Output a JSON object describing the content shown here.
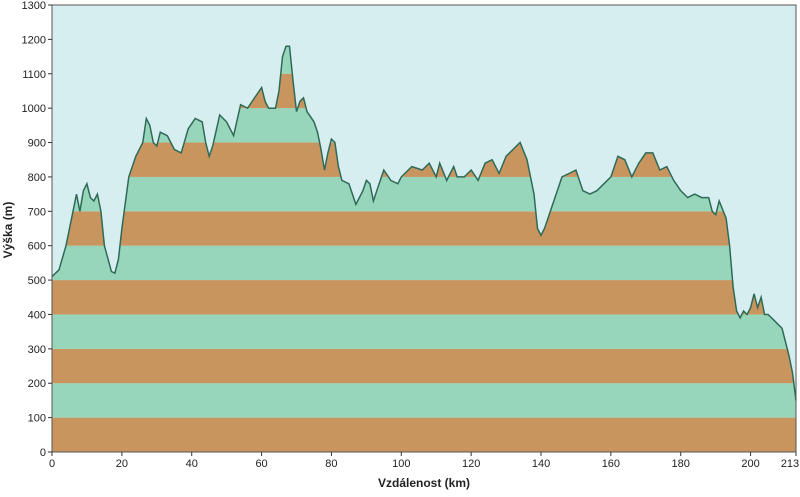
{
  "chart_data": {
    "type": "area",
    "xlabel": "Vzdálenost  (km)",
    "ylabel": "Výška (m)",
    "x": [
      0,
      2,
      4,
      6,
      7,
      8,
      9,
      10,
      11,
      12,
      13,
      14,
      15,
      17,
      18,
      19,
      20,
      22,
      24,
      26,
      27,
      28,
      29,
      30,
      31,
      33,
      35,
      37,
      39,
      41,
      43,
      44,
      45,
      46,
      48,
      50,
      52,
      54,
      56,
      58,
      60,
      61,
      62,
      64,
      65,
      66,
      67,
      68,
      69,
      70,
      71,
      72,
      73,
      75,
      76,
      77,
      78,
      79,
      80,
      81,
      82,
      83,
      85,
      87,
      89,
      90,
      91,
      92,
      93,
      95,
      97,
      99,
      100,
      103,
      106,
      108,
      110,
      111,
      113,
      115,
      116,
      118,
      120,
      122,
      124,
      126,
      128,
      130,
      132,
      134,
      136,
      138,
      139,
      140,
      141,
      143,
      146,
      148,
      150,
      152,
      154,
      156,
      158,
      160,
      162,
      164,
      166,
      168,
      170,
      172,
      174,
      176,
      178,
      180,
      182,
      184,
      186,
      188,
      189,
      190,
      191,
      193,
      194,
      195,
      196,
      197,
      198,
      199,
      200,
      201,
      202,
      203,
      204,
      205,
      207,
      209,
      211,
      212,
      213
    ],
    "values": [
      510,
      530,
      600,
      700,
      750,
      700,
      760,
      780,
      740,
      730,
      750,
      700,
      600,
      525,
      520,
      560,
      650,
      800,
      860,
      900,
      970,
      950,
      900,
      890,
      930,
      920,
      880,
      870,
      940,
      970,
      960,
      900,
      860,
      890,
      980,
      960,
      920,
      1010,
      1000,
      1030,
      1060,
      1020,
      1000,
      1000,
      1050,
      1150,
      1180,
      1180,
      1080,
      990,
      1020,
      1030,
      990,
      960,
      930,
      880,
      820,
      870,
      910,
      900,
      830,
      790,
      780,
      720,
      760,
      790,
      780,
      730,
      760,
      820,
      790,
      780,
      800,
      830,
      820,
      840,
      800,
      840,
      790,
      830,
      800,
      800,
      820,
      790,
      840,
      850,
      810,
      860,
      880,
      900,
      850,
      750,
      650,
      630,
      650,
      710,
      800,
      810,
      820,
      760,
      750,
      760,
      780,
      800,
      860,
      850,
      800,
      840,
      870,
      870,
      820,
      830,
      790,
      760,
      740,
      750,
      740,
      740,
      700,
      690,
      730,
      680,
      600,
      480,
      410,
      390,
      410,
      400,
      420,
      460,
      420,
      450,
      400,
      400,
      380,
      360,
      280,
      230,
      150
    ],
    "xlim": [
      0,
      213
    ],
    "xticks": [
      0,
      20,
      40,
      60,
      80,
      100,
      120,
      140,
      160,
      180,
      200,
      213
    ],
    "ylim": [
      0,
      1300
    ],
    "yticks": [
      0,
      100,
      200,
      300,
      400,
      500,
      600,
      700,
      800,
      900,
      1000,
      1100,
      1200,
      1300
    ],
    "band_colors": [
      "#c9955f",
      "#98d6bb"
    ],
    "background": "#d6eef0",
    "line_color": "#2f6a58"
  }
}
